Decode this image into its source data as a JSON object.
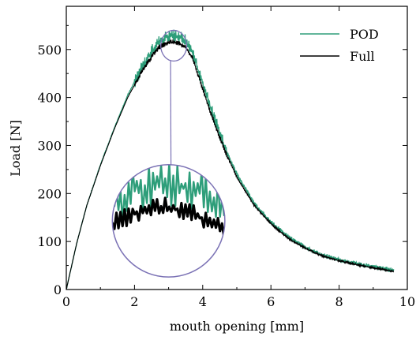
{
  "chart_data": {
    "type": "line",
    "xlabel": "mouth opening [mm]",
    "ylabel": "Load [N]",
    "xlim": [
      0,
      10
    ],
    "ylim": [
      0,
      590
    ],
    "x_ticks": [
      0,
      2,
      4,
      6,
      8,
      10
    ],
    "y_ticks": [
      0,
      100,
      200,
      300,
      400,
      500
    ],
    "grid": false,
    "legend": "top-right",
    "series": [
      {
        "name": "POD",
        "color": "#2e9e7a",
        "x": [
          0,
          0.3,
          0.6,
          1.0,
          1.4,
          1.8,
          2.2,
          2.5,
          2.7,
          2.9,
          3.1,
          3.3,
          3.5,
          3.7,
          3.9,
          4.2,
          4.6,
          5.0,
          5.5,
          6.0,
          6.5,
          7.0,
          7.5,
          8.0,
          8.5,
          9.0,
          9.6
        ],
        "y": [
          0,
          95,
          175,
          260,
          335,
          405,
          460,
          495,
          515,
          525,
          530,
          528,
          518,
          495,
          450,
          385,
          305,
          240,
          180,
          140,
          110,
          88,
          72,
          62,
          54,
          47,
          40
        ]
      },
      {
        "name": "Full",
        "color": "#000000",
        "x": [
          0,
          0.3,
          0.6,
          1.0,
          1.4,
          1.8,
          2.2,
          2.5,
          2.7,
          2.9,
          3.1,
          3.3,
          3.5,
          3.7,
          3.9,
          4.2,
          4.6,
          5.0,
          5.5,
          6.0,
          6.5,
          7.0,
          7.5,
          8.0,
          8.5,
          9.0,
          9.6
        ],
        "y": [
          0,
          95,
          175,
          258,
          333,
          400,
          452,
          485,
          503,
          512,
          516,
          513,
          503,
          482,
          440,
          375,
          298,
          234,
          176,
          137,
          107,
          86,
          70,
          60,
          52,
          45,
          38
        ]
      }
    ],
    "zoom": {
      "center": [
        3.15,
        508
      ],
      "radius": [
        0.38,
        32
      ],
      "inset_center": [
        3.0,
        143
      ],
      "inset_radius": [
        1.65,
        117
      ]
    }
  }
}
